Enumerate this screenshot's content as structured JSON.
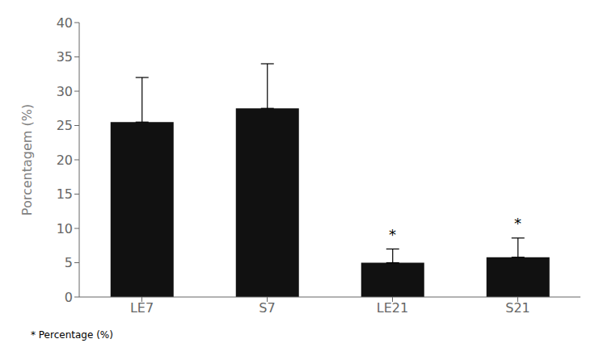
{
  "chart_data": {
    "type": "bar",
    "categories": [
      "LE7",
      "S7",
      "LE21",
      "S21"
    ],
    "values": [
      25.5,
      27.5,
      5.0,
      5.8
    ],
    "errors_upper": [
      6.5,
      6.5,
      2.0,
      2.8
    ],
    "color": "#111111",
    "ylabel": "Porcentagem (%)",
    "ylim": [
      0,
      40
    ],
    "yticks": [
      0,
      5,
      10,
      15,
      20,
      25,
      30,
      35,
      40
    ],
    "grid": false,
    "annotations": [
      {
        "text": "*",
        "x": "LE21",
        "y": 7.8
      },
      {
        "text": "*",
        "x": "S21",
        "y": 9.4
      }
    ],
    "footnote": "* Percentage (%)"
  }
}
